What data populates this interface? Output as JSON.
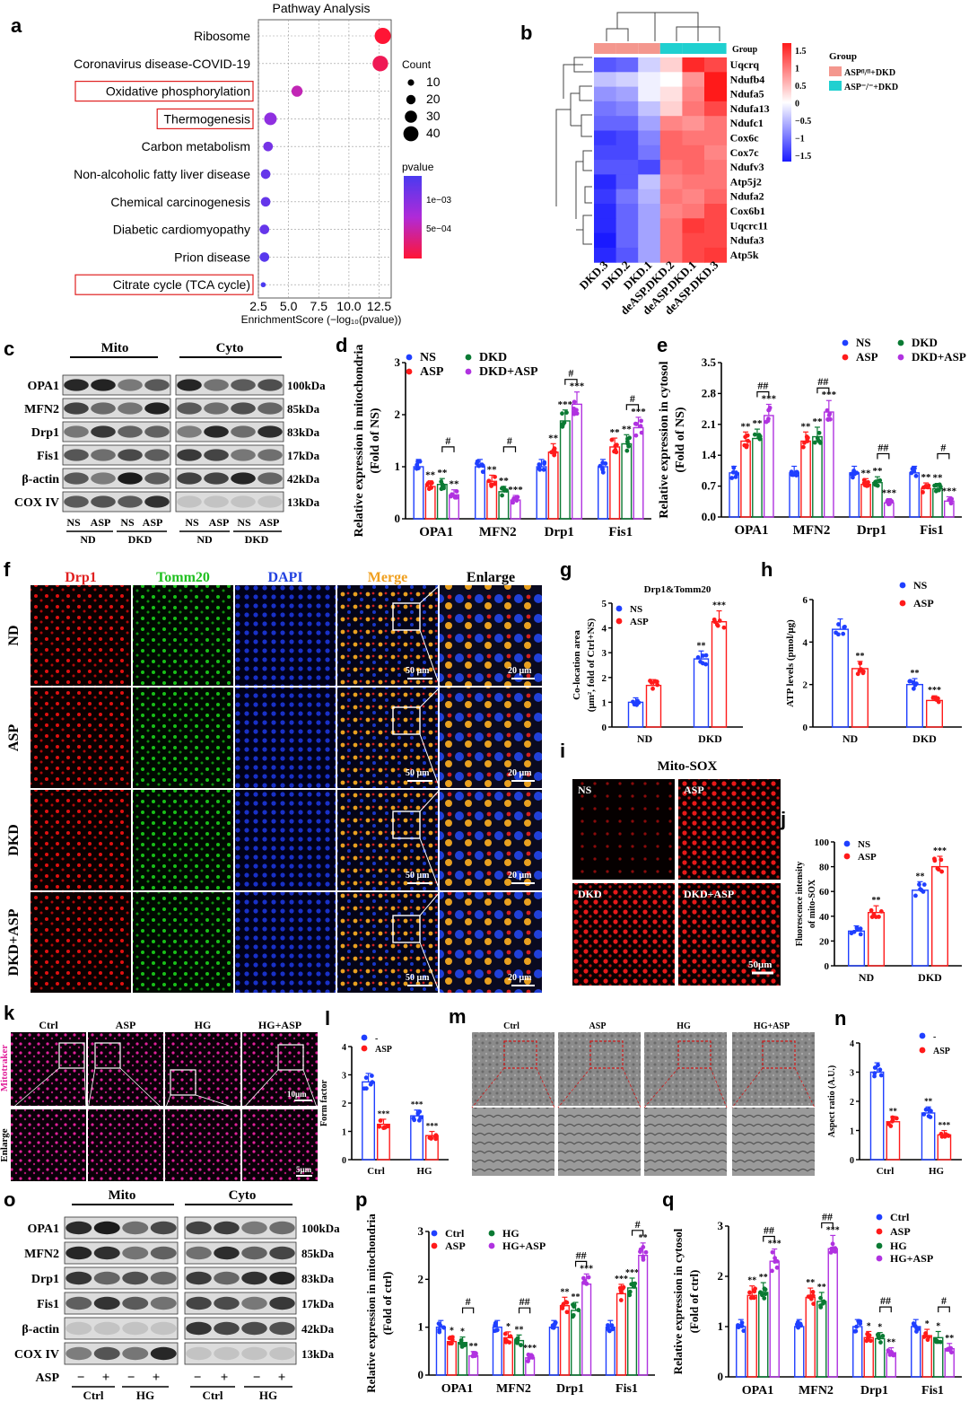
{
  "panels": {
    "a": "a",
    "b": "b",
    "c": "c",
    "d": "d",
    "e": "e",
    "f": "f",
    "g": "g",
    "h": "h",
    "i": "i",
    "j": "j",
    "k": "k",
    "l": "l",
    "m": "m",
    "n": "n",
    "o": "o",
    "p": "p",
    "q": "q"
  },
  "panel_a": {
    "title": "Pathway Analysis",
    "xlabel": "EnrichmentScore (−log₁₀(pvalue))",
    "count_title": "Count",
    "count_levels": [
      "10",
      "20",
      "30",
      "40"
    ],
    "pvalue_title": "pvalue",
    "pvalue_ticks": [
      "1e−03",
      "5e−04"
    ],
    "colors": {
      "high": "#4a3af0",
      "mid": "#b02ad8",
      "low": "#ff1535"
    }
  },
  "panel_b": {
    "group_title": "Group",
    "group_row_label": "Group",
    "legend": [
      {
        "label": "ASPᶠˡ/ᶠˡ+DKD",
        "color": "#f4978e"
      },
      {
        "label": "ASP⁻/⁻+DKD",
        "color": "#20d0d0"
      }
    ],
    "scale_ticks": [
      "1.5",
      "1",
      "0.5",
      "0",
      "−0.5",
      "−1",
      "−1.5"
    ],
    "genes": [
      "Uqcrq",
      "Ndufb4",
      "Ndufa5",
      "Ndufa13",
      "Ndufc1",
      "Cox6c",
      "Cox7c",
      "Ndufv3",
      "Atp5j2",
      "Ndufa2",
      "Cox6b1",
      "Uqcrc11",
      "Ndufa3",
      "Atp5k"
    ],
    "samples": [
      "DKD.3",
      "DKD.2",
      "DKD.1",
      "deASP.DKD.2",
      "deASP.DKD.1",
      "deASP.DKD.3"
    ],
    "values": [
      [
        -1.1,
        -1.0,
        -0.3,
        0.3,
        1.4,
        1.2
      ],
      [
        -0.4,
        -0.3,
        -0.1,
        0.0,
        0.7,
        1.5
      ],
      [
        -0.7,
        -0.6,
        -0.1,
        0.2,
        0.8,
        1.5
      ],
      [
        -0.9,
        -0.8,
        -0.4,
        0.3,
        0.9,
        1.2
      ],
      [
        -1.0,
        -1.0,
        -0.6,
        0.8,
        0.7,
        0.9
      ],
      [
        -1.3,
        -1.2,
        -0.8,
        1.0,
        0.9,
        0.9
      ],
      [
        -1.2,
        -1.2,
        -0.9,
        1.0,
        1.0,
        0.8
      ],
      [
        -1.1,
        -1.1,
        -1.2,
        0.9,
        1.0,
        0.9
      ],
      [
        -1.4,
        -1.1,
        -0.4,
        0.8,
        0.9,
        0.9
      ],
      [
        -1.3,
        -0.9,
        -0.5,
        0.9,
        0.8,
        1.0
      ],
      [
        -1.4,
        -1.0,
        -0.6,
        0.8,
        0.9,
        1.2
      ],
      [
        -1.4,
        -1.0,
        -0.6,
        0.9,
        1.3,
        1.2
      ],
      [
        -1.5,
        -1.0,
        -0.6,
        0.9,
        1.2,
        1.2
      ],
      [
        -1.4,
        -1.1,
        -0.6,
        0.9,
        1.2,
        1.3
      ]
    ]
  },
  "panel_c": {
    "mito": "Mito",
    "cyto": "Cyto",
    "bands": [
      "OPA1",
      "MFN2",
      "Drp1",
      "Fis1",
      "β-actin",
      "COX IV"
    ],
    "kda": [
      "100kDa",
      "85kDa",
      "83kDa",
      "17kDa",
      "42kDa",
      "13kDa"
    ],
    "lanes": [
      "NS",
      "ASP",
      "NS",
      "ASP"
    ],
    "groups": [
      "ND",
      "DKD"
    ]
  },
  "panel_f": {
    "columns": [
      "Drp1",
      "Tomm20",
      "DAPI",
      "Merge",
      "Enlarge"
    ],
    "rows": [
      "ND",
      "ASP",
      "DKD",
      "DKD+ASP"
    ],
    "scale1": "50 μm",
    "scale2": "20 μm"
  },
  "panel_i": {
    "title": "Mito-SOX",
    "quads": [
      "NS",
      "ASP",
      "DKD",
      "DKD+ASP"
    ],
    "scale": "50μm"
  },
  "panel_k": {
    "columns": [
      "Ctrl",
      "ASP",
      "HG",
      "HG+ASP"
    ],
    "row1": "Mitotraker",
    "row2": "Enlarge",
    "scale1": "10μm",
    "scale2": "5μm"
  },
  "panel_m": {
    "columns": [
      "Ctrl",
      "ASP",
      "HG",
      "HG+ASP"
    ]
  },
  "panel_o": {
    "mito": "Mito",
    "cyto": "Cyto",
    "bands": [
      "OPA1",
      "MFN2",
      "Drp1",
      "Fis1",
      "β-actin",
      "COX IV"
    ],
    "kda": [
      "100kDa",
      "85kDa",
      "83kDa",
      "17kDa",
      "42kDa",
      "13kDa"
    ],
    "asp_label": "ASP",
    "signs": [
      "−",
      "+",
      "−",
      "+"
    ],
    "groups": [
      "Ctrl",
      "HG"
    ]
  },
  "chart_data": [
    {
      "id": "a",
      "type": "scatter",
      "title": "Pathway Analysis",
      "xlabel": "EnrichmentScore (−log₁₀(pvalue))",
      "xlim": [
        2.5,
        13.5
      ],
      "xticks": [
        "2.5",
        "5.0",
        "7.5",
        "10.0",
        "12.5"
      ],
      "categories": [
        "Ribosome",
        "Coronavirus disease-COVID-19",
        "Oxidative phosphorylation",
        "Thermogenesis",
        "Carbon metabolism",
        "Non-alcoholic fatty liver disease",
        "Chemical carcinogenesis",
        "Diabetic cardiomyopathy",
        "Prion disease",
        "Citrate cycle (TCA cycle)"
      ],
      "highlighted": [
        "Oxidative phosphorylation",
        "Thermogenesis",
        "Citrate cycle (TCA cycle)"
      ],
      "x": [
        12.8,
        12.6,
        5.7,
        3.5,
        3.3,
        3.1,
        3.1,
        3.0,
        3.0,
        2.9
      ],
      "count": [
        42,
        40,
        25,
        30,
        20,
        20,
        20,
        20,
        20,
        5
      ],
      "pvalue": [
        2e-05,
        3e-05,
        0.0001,
        0.0003,
        0.0005,
        0.0007,
        0.0007,
        0.0007,
        0.0009,
        0.0012
      ]
    },
    {
      "id": "d",
      "type": "bar",
      "ylabel": "Relative expression in mitochondria (Fold of NS)",
      "ylim": [
        0,
        3
      ],
      "yticks": [
        "0",
        "1",
        "2",
        "3"
      ],
      "categories": [
        "OPA1",
        "MFN2",
        "Drp1",
        "Fis1"
      ],
      "series": [
        {
          "name": "NS",
          "values": [
            1.0,
            1.0,
            1.0,
            1.0
          ],
          "color": "#1f3fff"
        },
        {
          "name": "ASP",
          "values": [
            0.62,
            0.72,
            1.28,
            1.38
          ],
          "color": "#ff1a1a"
        },
        {
          "name": "DKD",
          "values": [
            0.66,
            0.52,
            1.88,
            1.44
          ],
          "color": "#0a7a33"
        },
        {
          "name": "DKD+ASP",
          "values": [
            0.46,
            0.36,
            2.2,
            1.75
          ],
          "color": "#b032e0"
        }
      ],
      "stars": [
        [
          "",
          "**",
          "**",
          "**"
        ],
        [
          "",
          "**",
          "**",
          "***"
        ],
        [
          "",
          "**",
          "***",
          "***"
        ],
        [
          "",
          "**",
          "**",
          "***"
        ]
      ],
      "brackets": [
        "#",
        "#",
        "#",
        "#"
      ]
    },
    {
      "id": "e",
      "type": "bar",
      "ylabel": "Relative expression in cytosol (Fold of NS)",
      "ylim": [
        0,
        3.5
      ],
      "yticks": [
        "0.0",
        "0.7",
        "1.4",
        "2.1",
        "2.8",
        "3.5"
      ],
      "categories": [
        "OPA1",
        "MFN2",
        "Drp1",
        "Fis1"
      ],
      "series": [
        {
          "name": "NS",
          "values": [
            1.0,
            1.0,
            1.0,
            1.0
          ],
          "color": "#1f3fff"
        },
        {
          "name": "ASP",
          "values": [
            1.72,
            1.72,
            0.74,
            0.65
          ],
          "color": "#ff1a1a"
        },
        {
          "name": "DKD",
          "values": [
            1.78,
            1.82,
            0.78,
            0.64
          ],
          "color": "#0a7a33"
        },
        {
          "name": "DKD+ASP",
          "values": [
            2.3,
            2.38,
            0.32,
            0.36
          ],
          "color": "#b032e0"
        }
      ],
      "stars": [
        [
          "",
          "**",
          "**",
          "***"
        ],
        [
          "",
          "**",
          "**",
          "***"
        ],
        [
          "",
          "**",
          "**",
          "***"
        ],
        [
          "",
          "**",
          "**",
          "***"
        ]
      ],
      "brackets": [
        "##",
        "##",
        "##",
        "#"
      ]
    },
    {
      "id": "g",
      "type": "bar",
      "title": "Drp1&Tomm20",
      "ylabel": "Co-location area (μm², fold of Ctrl+NS)",
      "ylim": [
        0,
        5
      ],
      "yticks": [
        "0",
        "1",
        "2",
        "3",
        "4",
        "5"
      ],
      "categories": [
        "ND",
        "DKD"
      ],
      "series": [
        {
          "name": "NS",
          "values": [
            1.0,
            2.75
          ],
          "color": "#1f3fff"
        },
        {
          "name": "ASP",
          "values": [
            1.68,
            4.25
          ],
          "color": "#ff1a1a"
        }
      ],
      "stars": [
        [
          "",
          ""
        ],
        [
          "**",
          "***"
        ]
      ],
      "stars2": [
        [
          "",
          "***"
        ]
      ],
      "brackets": [
        "##"
      ]
    },
    {
      "id": "h",
      "type": "bar",
      "ylabel": "ATP levels (pmol/μg)",
      "ylim": [
        0,
        6
      ],
      "yticks": [
        "0",
        "2",
        "4",
        "6"
      ],
      "categories": [
        "ND",
        "DKD"
      ],
      "series": [
        {
          "name": "NS",
          "values": [
            4.6,
            2.0
          ],
          "color": "#1f3fff"
        },
        {
          "name": "ASP",
          "values": [
            2.75,
            1.25
          ],
          "color": "#ff1a1a"
        }
      ],
      "stars": [
        [
          "",
          "**"
        ],
        [
          "**",
          "***"
        ]
      ],
      "brackets": [
        "#"
      ]
    },
    {
      "id": "j",
      "type": "bar",
      "ylabel": "Fluorescence intensity of mito-SOX",
      "ylim": [
        0,
        100
      ],
      "yticks": [
        "0",
        "20",
        "40",
        "60",
        "80",
        "100"
      ],
      "categories": [
        "ND",
        "DKD"
      ],
      "series": [
        {
          "name": "NS",
          "values": [
            28,
            61
          ],
          "color": "#1f3fff"
        },
        {
          "name": "ASP",
          "values": [
            43,
            80
          ],
          "color": "#ff1a1a"
        }
      ],
      "stars": [
        [
          "",
          "**"
        ],
        [
          "**",
          "***"
        ]
      ],
      "brackets": [
        "#"
      ]
    },
    {
      "id": "l",
      "type": "bar",
      "ylabel": "Form factor",
      "ylim": [
        0,
        4
      ],
      "yticks": [
        "0",
        "1",
        "2",
        "3",
        "4"
      ],
      "categories": [
        "Ctrl",
        "HG"
      ],
      "series": [
        {
          "name": "-",
          "values": [
            2.75,
            1.55
          ],
          "color": "#1f3fff"
        },
        {
          "name": "ASP",
          "values": [
            1.25,
            0.85
          ],
          "color": "#ff1a1a"
        }
      ],
      "stars": [
        [
          "",
          "***"
        ],
        [
          "***",
          "***"
        ]
      ],
      "brackets": [
        "#"
      ]
    },
    {
      "id": "n",
      "type": "bar",
      "ylabel": "Aspect ratio (A.U.)",
      "ylim": [
        0,
        4
      ],
      "yticks": [
        "0",
        "1",
        "2",
        "3",
        "4"
      ],
      "categories": [
        "Ctrl",
        "HG"
      ],
      "series": [
        {
          "name": "-",
          "values": [
            3.0,
            1.6
          ],
          "color": "#1f3fff"
        },
        {
          "name": "ASP",
          "values": [
            1.3,
            0.85
          ],
          "color": "#ff1a1a"
        }
      ],
      "stars": [
        [
          "",
          "**"
        ],
        [
          "**",
          "***"
        ]
      ],
      "brackets": [
        "#"
      ]
    },
    {
      "id": "p",
      "type": "bar",
      "ylabel": "Relative expression in mitochondria (Fold of ctrl)",
      "ylim": [
        0,
        3
      ],
      "yticks": [
        "0",
        "1",
        "2",
        "3"
      ],
      "categories": [
        "OPA1",
        "MFN2",
        "Drp1",
        "Fis1"
      ],
      "series": [
        {
          "name": "Ctrl",
          "values": [
            1.0,
            1.0,
            1.0,
            1.0
          ],
          "color": "#1f3fff"
        },
        {
          "name": "ASP",
          "values": [
            0.7,
            0.78,
            1.45,
            1.7
          ],
          "color": "#ff1a1a"
        },
        {
          "name": "HG",
          "values": [
            0.68,
            0.72,
            1.35,
            1.82
          ],
          "color": "#0a7a33"
        },
        {
          "name": "HG+ASP",
          "values": [
            0.4,
            0.36,
            1.9,
            2.5
          ],
          "color": "#b032e0"
        }
      ],
      "stars": [
        [
          "",
          "*",
          "*",
          "**"
        ],
        [
          "",
          "*",
          "**",
          "***"
        ],
        [
          "",
          "**",
          "**",
          "***"
        ],
        [
          "",
          "***",
          "***",
          "**"
        ]
      ],
      "brackets": [
        "#",
        "##",
        "##",
        "#"
      ]
    },
    {
      "id": "q",
      "type": "bar",
      "ylabel": "Relative expression in cytosol (Fold of ctrl)",
      "ylim": [
        0,
        3
      ],
      "yticks": [
        "0",
        "1",
        "2",
        "3"
      ],
      "categories": [
        "OPA1",
        "MFN2",
        "Drp1",
        "Fis1"
      ],
      "series": [
        {
          "name": "Ctrl",
          "values": [
            1.0,
            1.0,
            1.0,
            1.0
          ],
          "color": "#1f3fff"
        },
        {
          "name": "ASP",
          "values": [
            1.62,
            1.58,
            0.78,
            0.82
          ],
          "color": "#ff1a1a"
        },
        {
          "name": "HG",
          "values": [
            1.68,
            1.5,
            0.76,
            0.78
          ],
          "color": "#0a7a33"
        },
        {
          "name": "HG+ASP",
          "values": [
            2.3,
            2.55,
            0.48,
            0.56
          ],
          "color": "#b032e0"
        }
      ],
      "stars": [
        [
          "",
          "**",
          "**",
          "***"
        ],
        [
          "",
          "**",
          "**",
          "***"
        ],
        [
          "",
          "*",
          "*",
          "**"
        ],
        [
          "",
          "*",
          "*",
          "**"
        ]
      ],
      "brackets": [
        "##",
        "##",
        "##",
        "#"
      ]
    }
  ]
}
